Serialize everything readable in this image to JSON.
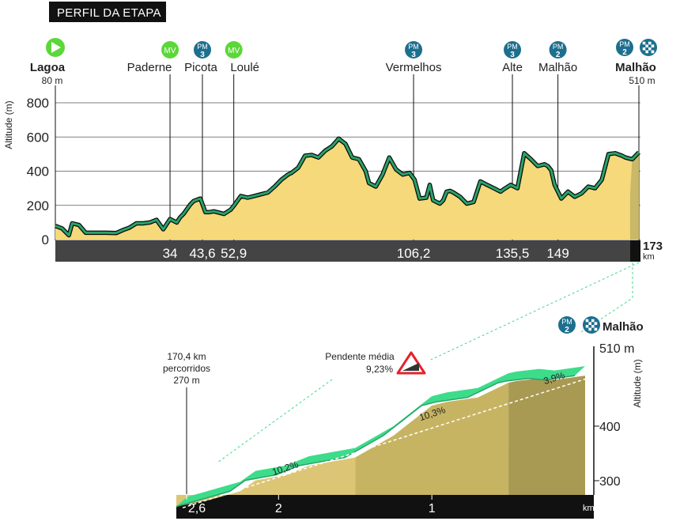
{
  "header": {
    "title": "PERFIL DA ETAPA"
  },
  "colors": {
    "profile_fill": "#f5d97a",
    "profile_line": "#1f8a5a",
    "axis_bar": "#444444",
    "sprint_badge": "#5cd73a",
    "mountain_badge": "#1d6f8e",
    "detail_top": "#3ddc8a",
    "detail_side": "#c9b868"
  },
  "main_profile": {
    "start": {
      "name": "Lagoa",
      "altitude": "80 m",
      "icon": "play-icon"
    },
    "finish": {
      "name": "Malhão",
      "altitude": "510 m",
      "icon": "checkered-flag-icon",
      "km": "173",
      "km_unit": "km"
    },
    "y_axis": {
      "label": "Altitude (m)",
      "ticks": [
        0,
        200,
        400,
        600,
        800
      ]
    },
    "markers": [
      {
        "name": "Paderne",
        "badge": "MV",
        "badge_sub": "",
        "type": "sprint",
        "km": 34,
        "km_label": "34"
      },
      {
        "name": "Picota",
        "badge": "PM",
        "badge_sub": "3",
        "type": "mountain",
        "km": 43.6,
        "km_label": "43,6"
      },
      {
        "name": "Loulé",
        "badge": "MV",
        "badge_sub": "",
        "type": "sprint",
        "km": 52.9,
        "km_label": "52,9"
      },
      {
        "name": "Vermelhos",
        "badge": "PM",
        "badge_sub": "3",
        "type": "mountain",
        "km": 106.2,
        "km_label": "106,2"
      },
      {
        "name": "Alte",
        "badge": "PM",
        "badge_sub": "3",
        "type": "mountain",
        "km": 135.5,
        "km_label": "135,5"
      },
      {
        "name": "Malhão",
        "badge": "PM",
        "badge_sub": "2",
        "type": "mountain",
        "km": 149,
        "km_label": "149"
      }
    ],
    "finish_badge": {
      "badge": "PM",
      "badge_sub": "2"
    }
  },
  "chart_data": [
    {
      "type": "area",
      "ylabel": "Altitude (m)",
      "xlim": [
        0,
        173
      ],
      "ylim": [
        0,
        800
      ],
      "x": [
        0,
        2,
        4,
        5,
        7,
        9,
        10,
        12,
        15,
        18,
        20,
        22,
        24,
        26,
        28,
        30,
        32,
        34,
        36,
        37,
        38,
        40,
        41,
        43,
        44.5,
        45.5,
        47,
        50,
        52,
        53,
        55,
        57,
        59,
        61,
        63,
        65,
        67,
        69,
        70,
        72,
        74,
        76,
        78,
        80,
        82,
        84,
        86,
        88,
        90,
        92,
        93,
        95,
        97,
        99,
        101,
        103,
        105,
        106.5,
        108,
        110,
        111,
        112,
        113,
        114,
        115,
        116,
        117,
        118,
        120,
        122,
        124,
        126,
        128,
        130,
        132,
        133,
        135,
        137,
        139,
        141,
        143,
        145,
        146,
        147,
        148,
        150,
        152,
        154,
        156,
        158,
        160,
        162,
        164,
        166,
        168,
        169,
        171,
        173
      ],
      "y": [
        80,
        65,
        25,
        95,
        85,
        40,
        40,
        40,
        40,
        38,
        55,
        70,
        95,
        95,
        100,
        115,
        60,
        120,
        100,
        130,
        150,
        205,
        225,
        240,
        160,
        160,
        165,
        150,
        175,
        200,
        255,
        245,
        255,
        265,
        275,
        310,
        350,
        380,
        390,
        420,
        490,
        495,
        480,
        520,
        545,
        590,
        560,
        480,
        470,
        400,
        330,
        310,
        380,
        480,
        410,
        380,
        390,
        350,
        240,
        245,
        320,
        230,
        220,
        210,
        230,
        280,
        285,
        275,
        250,
        210,
        220,
        340,
        320,
        300,
        280,
        295,
        320,
        300,
        505,
        470,
        430,
        440,
        430,
        405,
        320,
        240,
        280,
        250,
        270,
        310,
        300,
        350,
        500,
        505,
        490,
        480,
        470,
        510
      ]
    },
    {
      "type": "area",
      "title": "Malhão",
      "ylabel": "Altitude (m)",
      "y_ticks": [
        300,
        400
      ],
      "top_tick_label": "510 m",
      "start_note": [
        "170,4 km",
        "percorridos",
        "270 m"
      ],
      "avg_gradient": {
        "label": "Pendente média",
        "value": "9,23%"
      },
      "x_ticks": [
        {
          "km_to_go": 2.6,
          "label": "2,6"
        },
        {
          "km_to_go": 2,
          "label": "2"
        },
        {
          "km_to_go": 1,
          "label": "1"
        }
      ],
      "x_unit": "km",
      "segments": [
        {
          "from_km_to_go": 2.6,
          "to_km_to_go": 1.5,
          "gradient": "10,2%"
        },
        {
          "from_km_to_go": 1.5,
          "to_km_to_go": 0.5,
          "gradient": "10,3%"
        },
        {
          "from_km_to_go": 0.5,
          "to_km_to_go": 0,
          "gradient": "3,9%"
        }
      ],
      "km_to_go": [
        2.6,
        2.45,
        2.25,
        2.15,
        1.95,
        1.8,
        1.5,
        1.25,
        1.0,
        0.9,
        0.7,
        0.5,
        0.45,
        0.3,
        0.2,
        0
      ],
      "altitude": [
        270,
        282,
        298,
        318,
        328,
        345,
        360,
        400,
        455,
        462,
        470,
        497,
        500,
        505,
        502,
        510
      ]
    }
  ]
}
